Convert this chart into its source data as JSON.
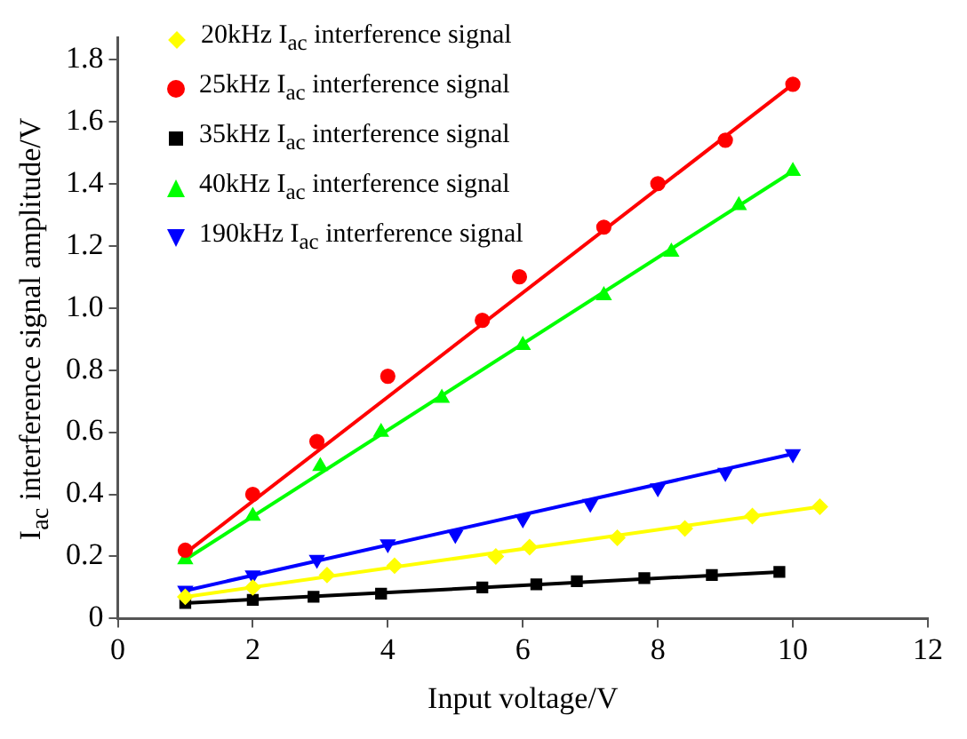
{
  "chart_data": {
    "type": "scatter",
    "xlabel": "Input voltage/V",
    "ylabel": "I$_{ac}$ interference signal amplitude/V",
    "xlim": [
      0,
      12
    ],
    "xticks": [
      0,
      2,
      4,
      6,
      8,
      10,
      12
    ],
    "ylim": [
      0,
      1.87
    ],
    "yticks": [
      0,
      0.2,
      0.4,
      0.6,
      0.8,
      {
        "value": 1,
        "label": "1.0"
      },
      1.2,
      1.4,
      1.6,
      1.8
    ],
    "grid": false,
    "legend": "top left",
    "series": [
      {
        "name": "20kHz I$_{ac}$ interference signal",
        "type": "scatter",
        "marker": "diamond",
        "color": "#ffff00",
        "x": [
          1,
          2,
          3.1,
          4.1,
          5.6,
          6.1,
          7.4,
          8.4,
          9.4,
          10.4
        ],
        "values": [
          0.07,
          0.1,
          0.14,
          0.17,
          0.2,
          0.23,
          0.26,
          0.29,
          0.33,
          0.36
        ]
      },
      {
        "name": "25kHz I$_{ac}$ interference signal",
        "type": "scatter",
        "marker": "circle",
        "color": "#ff0000",
        "x": [
          1,
          2,
          2.95,
          4,
          5.4,
          5.95,
          7.2,
          8,
          9,
          10
        ],
        "values": [
          0.22,
          0.4,
          0.57,
          0.78,
          0.96,
          1.1,
          1.26,
          1.4,
          1.54,
          1.72
        ]
      },
      {
        "name": "35kHz I$_{ac}$ interference signal",
        "type": "scatter",
        "marker": "square",
        "color": "#000000",
        "x": [
          1,
          2,
          2.9,
          3.9,
          5.4,
          6.2,
          6.8,
          7.8,
          8.8,
          9.8
        ],
        "values": [
          0.05,
          0.06,
          0.07,
          0.08,
          0.1,
          0.11,
          0.12,
          0.13,
          0.14,
          0.15
        ]
      },
      {
        "name": "40kHz I$_{ac}$ interference signal",
        "type": "scatter",
        "marker": "triangle",
        "color": "#00ff00",
        "x": [
          1,
          2,
          3,
          3.9,
          4.8,
          6,
          7.2,
          8.2,
          9.2,
          10
        ],
        "values": [
          0.19,
          0.33,
          0.49,
          0.6,
          0.71,
          0.88,
          1.04,
          1.18,
          1.33,
          1.44
        ]
      },
      {
        "name": "190kHz I$_{ac}$ interference signal",
        "type": "scatter",
        "marker": "triangle-down",
        "color": "#0000ff",
        "x": [
          1,
          2,
          2.95,
          4,
          5,
          6,
          7,
          8,
          9,
          10
        ],
        "values": [
          0.09,
          0.14,
          0.19,
          0.24,
          0.27,
          0.32,
          0.37,
          0.42,
          0.47,
          0.53
        ]
      },
      {
        "type": "line",
        "marker": "none",
        "color": "#ffff00",
        "x": [
          1,
          10.4
        ],
        "values": [
          0.07,
          0.36
        ]
      },
      {
        "type": "line",
        "marker": "none",
        "color": "#ff0000",
        "x": [
          1,
          10
        ],
        "values": [
          0.21,
          1.72
        ]
      },
      {
        "type": "line",
        "marker": "none",
        "color": "#000000",
        "x": [
          1,
          9.8
        ],
        "values": [
          0.05,
          0.15
        ]
      },
      {
        "type": "line",
        "marker": "none",
        "color": "#00ff00",
        "x": [
          1,
          10
        ],
        "values": [
          0.19,
          1.44
        ]
      },
      {
        "type": "line",
        "marker": "none",
        "color": "#0000ff",
        "x": [
          1,
          10
        ],
        "values": [
          0.09,
          0.53
        ]
      }
    ]
  }
}
